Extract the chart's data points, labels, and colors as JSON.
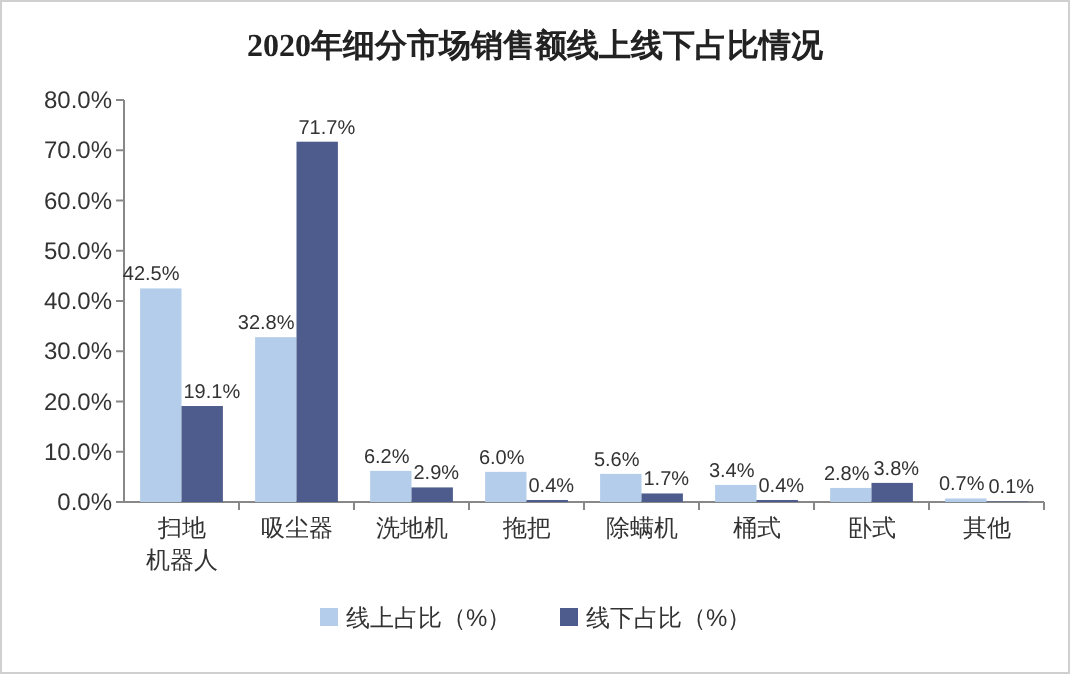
{
  "chart_data": {
    "type": "bar",
    "title": "2020年细分市场销售额线上线下占比情况",
    "categories": [
      "扫地机器人",
      "吸尘器",
      "洗地机",
      "拖把",
      "除螨机",
      "桶式",
      "卧式",
      "其他"
    ],
    "series": [
      {
        "name": "线上占比（%）",
        "color": "#b4cdea",
        "values": [
          42.5,
          32.8,
          6.2,
          6.0,
          5.6,
          3.4,
          2.8,
          0.7
        ],
        "value_labels": [
          "42.5%",
          "32.8%",
          "6.2%",
          "6.0%",
          "5.6%",
          "3.4%",
          "2.8%",
          "0.7%"
        ]
      },
      {
        "name": "线下占比（%）",
        "color": "#4d5c8c",
        "values": [
          19.1,
          71.7,
          2.9,
          0.4,
          1.7,
          0.4,
          3.8,
          0.1
        ],
        "value_labels": [
          "19.1%",
          "71.7%",
          "2.9%",
          "0.4%",
          "1.7%",
          "0.4%",
          "3.8%",
          "0.1%"
        ]
      }
    ],
    "ylim": [
      0,
      80
    ],
    "yticks": [
      {
        "value": 0,
        "label": "0.0%"
      },
      {
        "value": 10,
        "label": "10.0%"
      },
      {
        "value": 20,
        "label": "20.0%"
      },
      {
        "value": 30,
        "label": "30.0%"
      },
      {
        "value": 40,
        "label": "40.0%"
      },
      {
        "value": 50,
        "label": "50.0%"
      },
      {
        "value": 60,
        "label": "60.0%"
      },
      {
        "value": 70,
        "label": "70.0%"
      },
      {
        "value": 80,
        "label": "80.0%"
      }
    ],
    "legend": "bottom",
    "grid": false
  }
}
